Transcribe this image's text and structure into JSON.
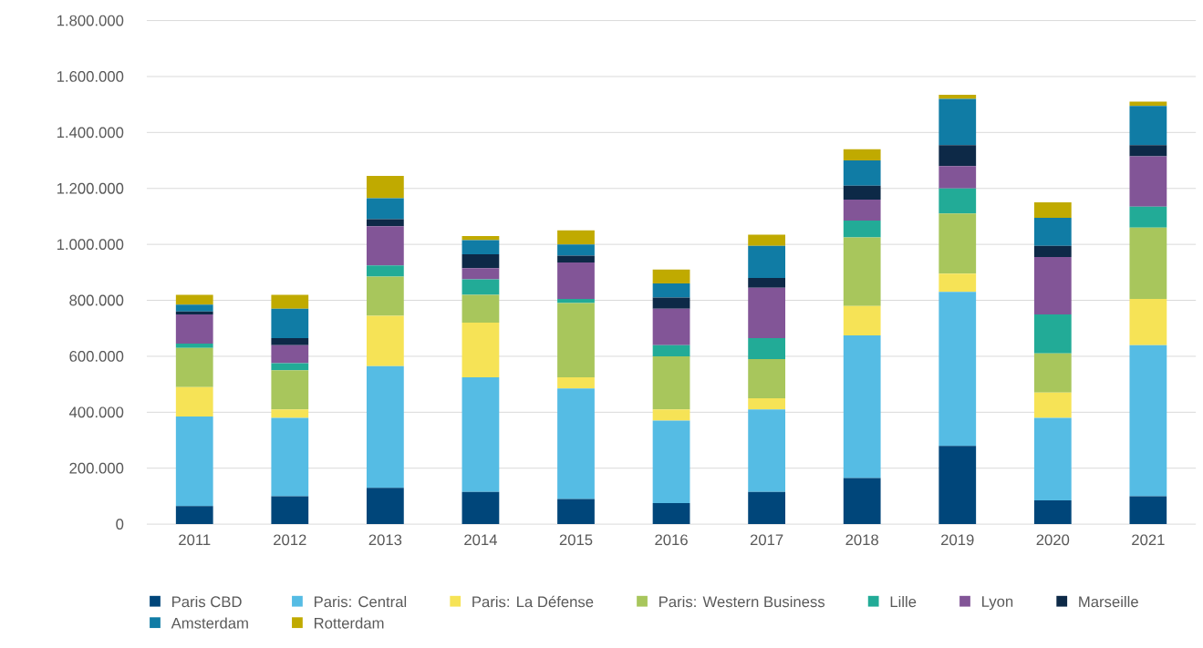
{
  "chart_data": {
    "type": "bar",
    "stacked": true,
    "categories": [
      "2011",
      "2012",
      "2013",
      "2014",
      "2015",
      "2016",
      "2017",
      "2018",
      "2019",
      "2020",
      "2021"
    ],
    "series": [
      {
        "name": "Paris CBD",
        "color": "#00467a",
        "values": [
          65000,
          100000,
          130000,
          115000,
          90000,
          75000,
          115000,
          165000,
          280000,
          85000,
          100000
        ]
      },
      {
        "name": "Paris: Central",
        "color": "#55bce4",
        "values": [
          320000,
          280000,
          435000,
          410000,
          395000,
          295000,
          295000,
          510000,
          550000,
          295000,
          540000
        ]
      },
      {
        "name": "Paris: La Défense",
        "color": "#f6e356",
        "values": [
          105000,
          30000,
          180000,
          195000,
          40000,
          40000,
          40000,
          105000,
          65000,
          90000,
          165000
        ]
      },
      {
        "name": "Paris: Western Business",
        "color": "#a8c65c",
        "values": [
          140000,
          140000,
          140000,
          100000,
          265000,
          190000,
          140000,
          245000,
          215000,
          140000,
          255000
        ]
      },
      {
        "name": "Lille",
        "color": "#22ab97",
        "values": [
          15000,
          25000,
          40000,
          55000,
          15000,
          40000,
          75000,
          60000,
          90000,
          140000,
          75000
        ]
      },
      {
        "name": "Lyon",
        "color": "#825597",
        "values": [
          105000,
          65000,
          140000,
          40000,
          130000,
          130000,
          180000,
          75000,
          80000,
          205000,
          180000
        ]
      },
      {
        "name": "Marseille",
        "color": "#0d2947",
        "values": [
          10000,
          25000,
          25000,
          50000,
          25000,
          40000,
          35000,
          50000,
          75000,
          40000,
          40000
        ]
      },
      {
        "name": "Amsterdam",
        "color": "#107ca5",
        "values": [
          25000,
          105000,
          75000,
          50000,
          40000,
          50000,
          115000,
          90000,
          165000,
          100000,
          140000
        ]
      },
      {
        "name": "Rotterdam",
        "color": "#c0aa00",
        "values": [
          35000,
          50000,
          80000,
          15000,
          50000,
          50000,
          40000,
          40000,
          15000,
          55000,
          15000
        ]
      }
    ],
    "ylim": [
      0,
      1800000
    ],
    "yticks": [
      0,
      {
        "value": 200000,
        "label": "200.000"
      },
      {
        "value": 400000,
        "label": "400.000"
      },
      {
        "value": 600000,
        "label": "600.000"
      },
      {
        "value": 800000,
        "label": "800.000"
      },
      {
        "value": 1000000,
        "label": "1.000.000"
      },
      {
        "value": 1200000,
        "label": "1.200.000"
      },
      {
        "value": 1400000,
        "label": "1.400.000"
      },
      {
        "value": 1600000,
        "label": "1.600.000"
      },
      {
        "value": 1800000,
        "label": "1.800.000"
      }
    ],
    "grid": "y",
    "legend": "bottom"
  }
}
